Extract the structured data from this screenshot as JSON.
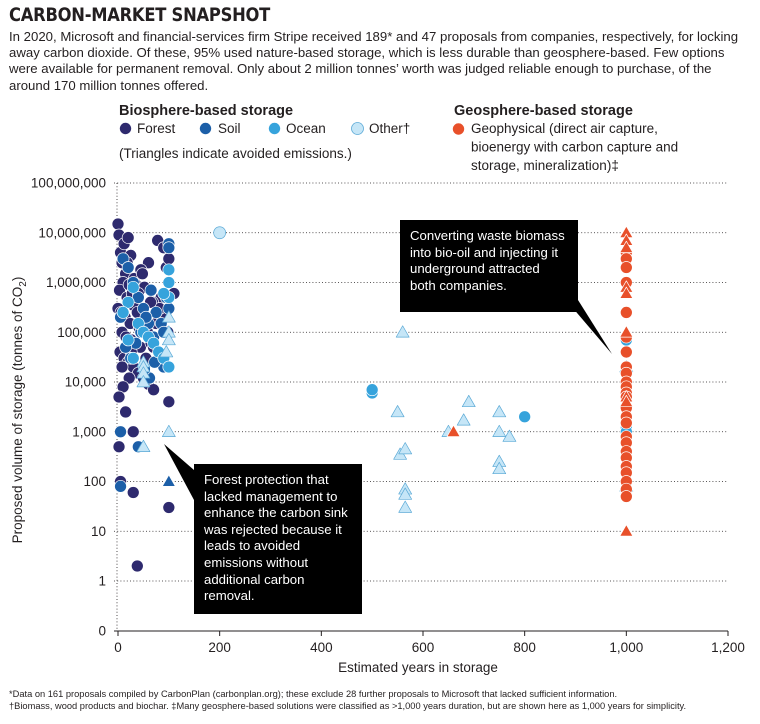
{
  "title": "CARBON-MARKET SNAPSHOT",
  "intro": "In 2020, Microsoft and financial-services firm Stripe received 189* and 47 proposals from companies, respectively, for locking away carbon dioxide. Of these, 95% used nature-based storage, which is less durable than geosphere-based. Few options were available for permanent removal. Only about 2 million tonnes’ worth was judged reliable enough to purchase, of the around 170 million tonnes offered.",
  "legend": {
    "biosphere_heading": "Biosphere-based storage",
    "geosphere_heading": "Geosphere-based storage",
    "items": [
      {
        "key": "forest",
        "label": "Forest",
        "color": "#2e2a6e"
      },
      {
        "key": "soil",
        "label": "Soil",
        "color": "#1c5fa8"
      },
      {
        "key": "ocean",
        "label": "Ocean",
        "color": "#36a3dc"
      },
      {
        "key": "other",
        "label": "Other†",
        "color": "#c6e6f7"
      },
      {
        "key": "geophysical",
        "label": "Geophysical (direct air capture, bioenergy with carbon capture and storage, mineralization)‡",
        "color": "#e8502a"
      }
    ],
    "geo_lines": [
      "Geophysical (direct air capture,",
      "bioenergy with carbon capture and",
      "storage, mineralization)‡"
    ],
    "triangle_note": "(Triangles indicate avoided emissions.)"
  },
  "callouts": {
    "waste": "Converting waste biomass into bio-oil and injecting it underground attracted both companies.",
    "forest": "Forest protection that lacked management to enhance the carbon sink was rejected because it leads to avoided emissions without additional carbon removal."
  },
  "footnotes": [
    "*Data on 161 proposals compiled by CarbonPlan (carbonplan.org); these exclude 28 further proposals to Microsoft that lacked sufficient information.",
    "†Biomass, wood products and biochar. ‡Many geosphere-based solutions were classified as >1,000 years duration, but are shown here as 1,000 years for simplicity."
  ],
  "chart_data": {
    "type": "scatter",
    "title": "CARBON-MARKET SNAPSHOT",
    "xlabel": "Estimated years in storage",
    "ylabel": "Proposed volume of storage (tonnes of CO2)",
    "ylabel_parts": [
      "Proposed volume of storage (tonnes of CO",
      "2",
      ")"
    ],
    "xlim": [
      0,
      1200
    ],
    "x_ticks": [
      0,
      200,
      400,
      600,
      800,
      1000,
      1200
    ],
    "x_tick_labels": [
      "0",
      "200",
      "400",
      "600",
      "800",
      "1,000",
      "1,200"
    ],
    "y_scale": "log",
    "y_ticks": [
      1,
      10,
      100,
      1000,
      10000,
      100000,
      1000000,
      10000000,
      100000000
    ],
    "y_tick_labels": [
      "1",
      "10",
      "100",
      "1,000",
      "10,000",
      "100,000",
      "1,000,000",
      "10,000,000",
      "100,000,000"
    ],
    "y_zero_label": "0",
    "series": [
      {
        "name": "Forest",
        "marker": "circle",
        "points": [
          [
            0,
            15000000
          ],
          [
            2,
            9000000
          ],
          [
            5,
            4000000
          ],
          [
            8,
            2500000
          ],
          [
            12,
            6000000
          ],
          [
            15,
            1500000
          ],
          [
            20,
            8000000
          ],
          [
            25,
            3500000
          ],
          [
            10,
            1000000
          ],
          [
            3,
            700000
          ],
          [
            18,
            500000
          ],
          [
            22,
            900000
          ],
          [
            28,
            600000
          ],
          [
            32,
            1200000
          ],
          [
            35,
            400000
          ],
          [
            0,
            300000
          ],
          [
            6,
            250000
          ],
          [
            14,
            200000
          ],
          [
            24,
            150000
          ],
          [
            30,
            350000
          ],
          [
            38,
            250000
          ],
          [
            42,
            120000
          ],
          [
            8,
            100000
          ],
          [
            16,
            80000
          ],
          [
            26,
            70000
          ],
          [
            34,
            60000
          ],
          [
            44,
            50000
          ],
          [
            4,
            40000
          ],
          [
            12,
            30000
          ],
          [
            20,
            25000
          ],
          [
            30,
            20000
          ],
          [
            40,
            15000
          ],
          [
            50,
            12000
          ],
          [
            60,
            9000
          ],
          [
            70,
            7000
          ],
          [
            55,
            30000
          ],
          [
            65,
            60000
          ],
          [
            75,
            150000
          ],
          [
            85,
            500000
          ],
          [
            95,
            2000000
          ],
          [
            78,
            7000000
          ],
          [
            90,
            5000000
          ],
          [
            100,
            3000000
          ],
          [
            110,
            600000
          ],
          [
            60,
            2500000
          ],
          [
            45,
            1800000
          ],
          [
            35,
            900000
          ],
          [
            22,
            12000
          ],
          [
            10,
            8000
          ],
          [
            2,
            5000
          ],
          [
            15,
            2500
          ],
          [
            30,
            1000
          ],
          [
            48,
            1500000
          ],
          [
            52,
            800000
          ],
          [
            68,
            400000
          ],
          [
            88,
            200000
          ],
          [
            98,
            100000
          ],
          [
            80,
            40000
          ],
          [
            92,
            20000
          ],
          [
            100,
            4000
          ],
          [
            100,
            30
          ],
          [
            30,
            60
          ],
          [
            5,
            100
          ],
          [
            2,
            500
          ],
          [
            38,
            2
          ],
          [
            70,
            50000
          ],
          [
            58,
            100000
          ],
          [
            82,
            300000
          ],
          [
            18,
            2500000
          ],
          [
            40,
            600000
          ],
          [
            8,
            20000
          ],
          [
            26,
            40000
          ],
          [
            64,
            400000
          ],
          [
            96,
            500000
          ]
        ]
      },
      {
        "name": "Soil",
        "marker": "circle",
        "points": [
          [
            10,
            3000000
          ],
          [
            20,
            2000000
          ],
          [
            30,
            1000000
          ],
          [
            40,
            500000
          ],
          [
            50,
            300000
          ],
          [
            60,
            150000
          ],
          [
            70,
            80000
          ],
          [
            80,
            40000
          ],
          [
            90,
            20000
          ],
          [
            100,
            6000000
          ],
          [
            100,
            1000000
          ],
          [
            100,
            300000
          ],
          [
            95,
            500000
          ],
          [
            85,
            150000
          ],
          [
            75,
            250000
          ],
          [
            65,
            700000
          ],
          [
            55,
            200000
          ],
          [
            45,
            100000
          ],
          [
            35,
            60000
          ],
          [
            25,
            30000
          ],
          [
            15,
            50000
          ],
          [
            5,
            200000
          ],
          [
            40,
            500
          ],
          [
            5,
            1000
          ],
          [
            5,
            80
          ],
          [
            100,
            5000000
          ],
          [
            90,
            100000
          ],
          [
            72,
            25000
          ],
          [
            62,
            12000
          ],
          [
            52,
            18000
          ]
        ]
      },
      {
        "name": "Soil avoided",
        "marker": "triangle",
        "points": [
          [
            100,
            100
          ]
        ]
      },
      {
        "name": "Ocean",
        "marker": "circle",
        "points": [
          [
            100,
            1800000
          ],
          [
            100,
            1000000
          ],
          [
            100,
            500000
          ],
          [
            90,
            600000
          ],
          [
            30,
            800000
          ],
          [
            20,
            400000
          ],
          [
            10,
            250000
          ],
          [
            40,
            150000
          ],
          [
            50,
            100000
          ],
          [
            60,
            80000
          ],
          [
            70,
            60000
          ],
          [
            80,
            40000
          ],
          [
            90,
            30000
          ],
          [
            100,
            20000
          ],
          [
            20,
            70000
          ],
          [
            30,
            30000
          ],
          [
            500,
            6000
          ],
          [
            500,
            7000
          ],
          [
            800,
            2000
          ],
          [
            1000,
            70000
          ],
          [
            1000,
            10000
          ],
          [
            1000,
            1200
          ],
          [
            1000,
            1000
          ]
        ]
      },
      {
        "name": "Other",
        "marker": "circle",
        "points": [
          [
            200,
            10000000
          ]
        ]
      },
      {
        "name": "Other avoided",
        "marker": "triangle",
        "points": [
          [
            100,
            200000
          ],
          [
            100,
            100000
          ],
          [
            100,
            70000
          ],
          [
            95,
            40000
          ],
          [
            50,
            25000
          ],
          [
            50,
            20000
          ],
          [
            50,
            15000
          ],
          [
            50,
            10000
          ],
          [
            100,
            1000
          ],
          [
            50,
            500
          ],
          [
            560,
            100000
          ],
          [
            550,
            2500
          ],
          [
            555,
            350
          ],
          [
            565,
            450
          ],
          [
            565,
            70
          ],
          [
            565,
            55
          ],
          [
            565,
            30
          ],
          [
            650,
            1000
          ],
          [
            680,
            1700
          ],
          [
            690,
            4000
          ],
          [
            750,
            2500
          ],
          [
            750,
            1000
          ],
          [
            750,
            250
          ],
          [
            750,
            180
          ],
          [
            770,
            800
          ],
          [
            1000,
            20000
          ],
          [
            1000,
            80
          ]
        ]
      },
      {
        "name": "Geophysical",
        "marker": "circle",
        "points": [
          [
            1000,
            4000000
          ],
          [
            1000,
            3000000
          ],
          [
            1000,
            2000000
          ],
          [
            1000,
            1000000
          ],
          [
            1000,
            250000
          ],
          [
            1000,
            80000
          ],
          [
            1000,
            40000
          ],
          [
            1000,
            20000
          ],
          [
            1000,
            15000
          ],
          [
            1000,
            10000
          ],
          [
            1000,
            8000
          ],
          [
            1000,
            6000
          ],
          [
            1000,
            5000
          ],
          [
            1000,
            3000
          ],
          [
            1000,
            2000
          ],
          [
            1000,
            1500
          ],
          [
            1000,
            800
          ],
          [
            1000,
            600
          ],
          [
            1000,
            400
          ],
          [
            1000,
            300
          ],
          [
            1000,
            200
          ],
          [
            1000,
            150
          ],
          [
            1000,
            100
          ],
          [
            1000,
            70
          ],
          [
            1000,
            50
          ]
        ]
      },
      {
        "name": "Geophysical avoided",
        "marker": "triangle",
        "points": [
          [
            1000,
            10000000
          ],
          [
            1000,
            7000000
          ],
          [
            1000,
            5000000
          ],
          [
            1000,
            800000
          ],
          [
            1000,
            600000
          ],
          [
            1000,
            100000
          ],
          [
            1000,
            5000
          ],
          [
            1000,
            4000
          ],
          [
            1000,
            10
          ],
          [
            660,
            1000
          ]
        ]
      }
    ]
  }
}
